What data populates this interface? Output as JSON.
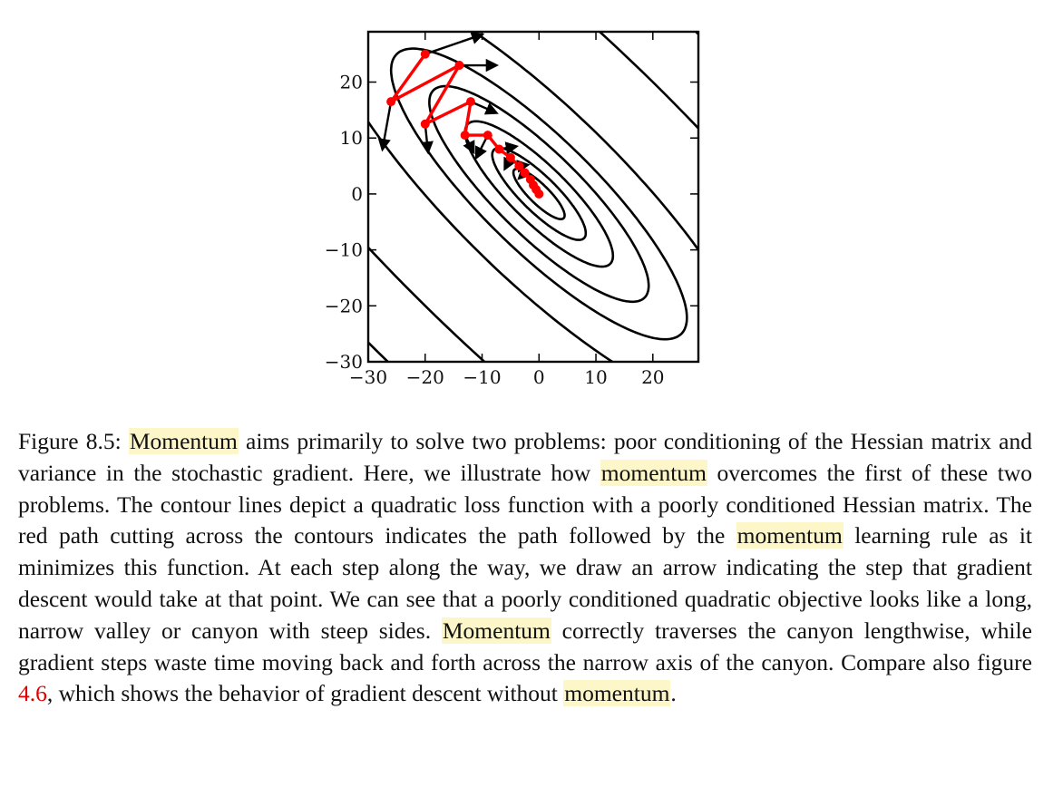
{
  "chart_data": {
    "type": "line",
    "xlim": [
      -30,
      28
    ],
    "ylim": [
      -30,
      29
    ],
    "x_ticks": [
      "−30",
      "−20",
      "−10",
      "0",
      "10",
      "20"
    ],
    "y_ticks": [
      "20",
      "10",
      "0",
      "−10",
      "−20",
      "−30"
    ],
    "contour_levels": [
      3,
      10,
      25,
      55,
      100,
      220,
      800,
      1600
    ],
    "series": [
      {
        "x": [
          -20,
          -26,
          -14,
          -20,
          -12,
          -13,
          -9,
          -7,
          -5,
          -3.5,
          -2.5,
          -1.5,
          -1,
          -0.5,
          0
        ],
        "y": [
          25,
          16.5,
          23,
          12.5,
          16.5,
          10.5,
          10.5,
          8,
          6.5,
          5,
          3.8,
          2.6,
          1.6,
          0.8,
          0
        ]
      }
    ],
    "gradient_arrows": [
      {
        "x1": -20,
        "y1": 25,
        "x2": -10,
        "y2": 28.5
      },
      {
        "x1": -26,
        "y1": 16.5,
        "x2": -27.5,
        "y2": 8
      },
      {
        "x1": -14,
        "y1": 23,
        "x2": -7.5,
        "y2": 23
      },
      {
        "x1": -20,
        "y1": 12.5,
        "x2": -19.5,
        "y2": 7.5
      },
      {
        "x1": -12,
        "y1": 16.5,
        "x2": -7.5,
        "y2": 14.5
      },
      {
        "x1": -13,
        "y1": 10.5,
        "x2": -11.5,
        "y2": 7.5
      },
      {
        "x1": -9,
        "y1": 10.5,
        "x2": -11,
        "y2": 6.5
      },
      {
        "x1": -7,
        "y1": 8,
        "x2": -4,
        "y2": 8.5
      },
      {
        "x1": -5,
        "y1": 6.5,
        "x2": -6,
        "y2": 4.5
      },
      {
        "x1": -3.5,
        "y1": 5,
        "x2": -2,
        "y2": 5.2
      },
      {
        "x1": -2.5,
        "y1": 3.8,
        "x2": -3.5,
        "y2": 2.8
      }
    ]
  },
  "caption": {
    "label": "Figure 8.5:",
    "hl1": "Momentum",
    "t1": " aims primarily to solve two problems: poor conditioning of the Hessian matrix and variance in the stochastic gradient. Here, we illustrate how ",
    "hl2": "momentum",
    "t2": " overcomes the first of these two problems. The contour lines depict a quadratic loss function with a poorly conditioned Hessian matrix. The red path cutting across the contours indicates the path followed by the ",
    "hl3": "momentum",
    "t3": " learning rule as it minimizes this function. At each step along the way, we draw an arrow indicating the step that gradient descent would take at that point. We can see that a poorly conditioned quadratic objective looks like a long, narrow valley or canyon with steep sides. ",
    "hl4": "Momentum",
    "t4": " correctly traverses the canyon lengthwise, while gradient steps waste time moving back and forth across the narrow axis of the canyon. Compare also figure ",
    "ref": "4.6",
    "t5": ", which shows the behavior of gradient descent without ",
    "hl5": "momentum",
    "t6": "."
  },
  "colors": {
    "path": "#ff0000",
    "contour": "#000000",
    "highlight": "#fdf6c9",
    "crossref": "#e00000"
  }
}
